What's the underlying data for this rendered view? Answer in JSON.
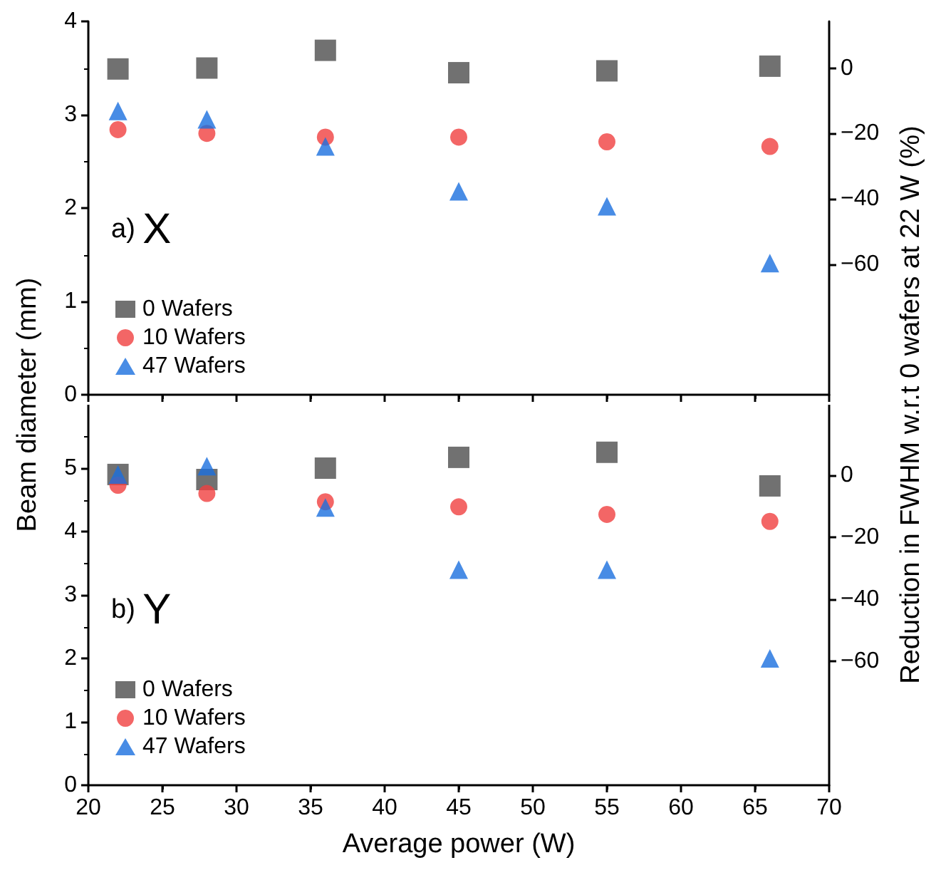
{
  "chart_data": [
    {
      "type": "scatter",
      "x": [
        22,
        28,
        36,
        45,
        55,
        66
      ],
      "ylabel": "Beam diameter (mm)",
      "y2label": "Reduction in FWHM w.r.t 0 wafers at 22 W (%)",
      "annotations": [
        "a) X"
      ],
      "series": [
        {
          "name": "0 Wafers",
          "color": "#4d4d4d",
          "marker": "square",
          "values": [
            3.49,
            3.5,
            3.69,
            3.45,
            3.47,
            3.52
          ]
        },
        {
          "name": "10 Wafers",
          "color": "#f04040",
          "marker": "circle",
          "values": [
            2.84,
            2.8,
            2.76,
            2.76,
            2.71,
            2.66
          ]
        },
        {
          "name": "47 Wafers",
          "color": "#1a6fdf",
          "marker": "triangle",
          "values": [
            3.04,
            2.95,
            2.66,
            2.18,
            2.02,
            1.41
          ]
        }
      ],
      "xlim": [
        20,
        70
      ],
      "xticks": [
        20,
        25,
        30,
        35,
        40,
        45,
        50,
        55,
        60,
        65,
        70
      ],
      "ylim": [
        0,
        4
      ],
      "yticks": [
        0,
        1,
        2,
        3,
        4
      ],
      "y2lim": [
        -100,
        14.3
      ],
      "y2ticks": [
        -60,
        -40,
        -20,
        0
      ],
      "tick_labels": "y",
      "legend": "bottom left",
      "grid": false
    },
    {
      "type": "scatter",
      "x": [
        22,
        28,
        36,
        45,
        55,
        66
      ],
      "xlabel": "Average power (W)",
      "annotations": [
        "b) Y"
      ],
      "series": [
        {
          "name": "0 Wafers",
          "color": "#4d4d4d",
          "marker": "square",
          "values": [
            4.9,
            4.82,
            5.0,
            5.17,
            5.25,
            4.72
          ]
        },
        {
          "name": "10 Wafers",
          "color": "#f04040",
          "marker": "circle",
          "values": [
            4.73,
            4.6,
            4.47,
            4.39,
            4.27,
            4.16
          ]
        },
        {
          "name": "47 Wafers",
          "color": "#1a6fdf",
          "marker": "triangle",
          "values": [
            4.9,
            5.03,
            4.38,
            3.4,
            3.4,
            2.0
          ]
        }
      ],
      "xlim": [
        20,
        70
      ],
      "xticks": [
        20,
        25,
        30,
        35,
        40,
        45,
        50,
        55,
        60,
        65,
        70
      ],
      "ylim": [
        0,
        6
      ],
      "yticks": [
        0,
        1,
        2,
        3,
        4,
        5
      ],
      "y2lim": [
        -100,
        22.7
      ],
      "y2ticks": [
        -60,
        -40,
        -20,
        0
      ],
      "legend": "bottom left",
      "grid": false
    }
  ]
}
